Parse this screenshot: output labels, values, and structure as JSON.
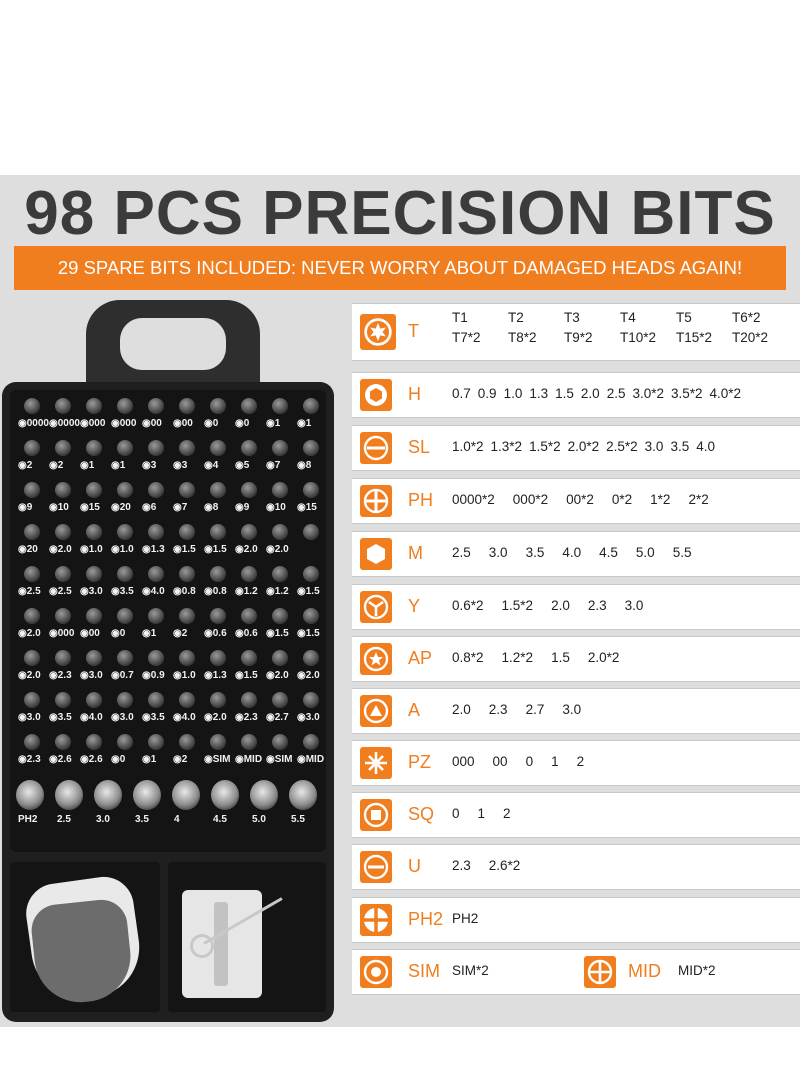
{
  "headline": "98 PCS PRECISION BITS",
  "banner": "29 SPARE BITS INCLUDED: NEVER WORRY ABOUT DAMAGED HEADS AGAIN!",
  "colors": {
    "accent": "#f07d1e",
    "panel": "#dedede",
    "text": "#3b3b3b"
  },
  "bits": [
    {
      "code": "T",
      "icon": "torx-star-icon",
      "grid": [
        [
          "T1",
          "T2",
          "T3",
          "T4",
          "T5",
          "T6*2"
        ],
        [
          "T7*2",
          "T8*2",
          "T9*2",
          "T10*2",
          "T15*2",
          "T20*2"
        ]
      ]
    },
    {
      "code": "H",
      "icon": "hex-icon",
      "values": [
        "0.7",
        "0.9",
        "1.0",
        "1.3",
        "1.5",
        "2.0",
        "2.5",
        "3.0*2",
        "3.5*2",
        "4.0*2"
      ]
    },
    {
      "code": "SL",
      "icon": "slotted-icon",
      "values": [
        "1.0*2",
        "1.3*2",
        "1.5*2",
        "2.0*2",
        "2.5*2",
        "3.0",
        "3.5",
        "4.0"
      ]
    },
    {
      "code": "PH",
      "icon": "phillips-icon",
      "values": [
        "0000*2",
        "000*2",
        "00*2",
        "0*2",
        "1*2",
        "2*2"
      ]
    },
    {
      "code": "M",
      "icon": "hexagon-socket-icon",
      "values": [
        "2.5",
        "3.0",
        "3.5",
        "4.0",
        "4.5",
        "5.0",
        "5.5"
      ]
    },
    {
      "code": "Y",
      "icon": "tri-wing-icon",
      "values": [
        "0.6*2",
        "1.5*2",
        "2.0",
        "2.3",
        "3.0"
      ]
    },
    {
      "code": "AP",
      "icon": "pentalobe-star-icon",
      "values": [
        "0.8*2",
        "1.2*2",
        "1.5",
        "2.0*2"
      ]
    },
    {
      "code": "A",
      "icon": "triangle-icon",
      "values": [
        "2.0",
        "2.3",
        "2.7",
        "3.0"
      ]
    },
    {
      "code": "PZ",
      "icon": "pozidriv-icon",
      "values": [
        "000",
        "00",
        "0",
        "1",
        "2"
      ]
    },
    {
      "code": "SQ",
      "icon": "square-icon",
      "values": [
        "0",
        "1",
        "2"
      ]
    },
    {
      "code": "U",
      "icon": "u-shape-icon",
      "values": [
        "2.3",
        "2.6*2"
      ]
    },
    {
      "code": "PH2",
      "icon": "phillips-large-icon",
      "values": [
        "PH2"
      ]
    },
    {
      "code": "SIM",
      "icon": "sim-ring-icon",
      "values": [
        "SIM*2"
      ],
      "code2": "MID",
      "icon2": "mid-cross-icon",
      "values2": [
        "MID*2"
      ]
    }
  ],
  "kit": {
    "tray_rows": [
      [
        "0000",
        "0000",
        "000",
        "000",
        "00",
        "00",
        "0",
        "0",
        "1",
        "1"
      ],
      [
        "2",
        "2",
        "1",
        "1",
        "3",
        "3",
        "4",
        "5",
        "7",
        "8"
      ],
      [
        "9",
        "10",
        "15",
        "20",
        "6",
        "7",
        "8",
        "9",
        "10",
        "15"
      ],
      [
        "20",
        "2.0",
        "1.0",
        "1.0",
        "1.3",
        "1.5",
        "1.5",
        "2.0",
        "2.0",
        ""
      ],
      [
        "2.5",
        "2.5",
        "3.0",
        "3.5",
        "4.0",
        "0.8",
        "0.8",
        "1.2",
        "1.2",
        "1.5"
      ],
      [
        "2.0",
        "000",
        "00",
        "0",
        "1",
        "2",
        "0.6",
        "0.6",
        "1.5",
        "1.5"
      ],
      [
        "2.0",
        "2.3",
        "3.0",
        "0.7",
        "0.9",
        "1.0",
        "1.3",
        "1.5",
        "2.0",
        "2.0"
      ],
      [
        "3.0",
        "3.5",
        "4.0",
        "3.0",
        "3.5",
        "4.0",
        "2.0",
        "2.3",
        "2.7",
        "3.0"
      ],
      [
        "2.3",
        "2.6",
        "2.6",
        "0",
        "1",
        "2",
        "SIM",
        "MID",
        "SIM",
        "MID"
      ]
    ],
    "socket_labels": [
      "PH2",
      "2.5",
      "3.0",
      "3.5",
      "4",
      "4.5",
      "5.0",
      "5.5"
    ]
  }
}
